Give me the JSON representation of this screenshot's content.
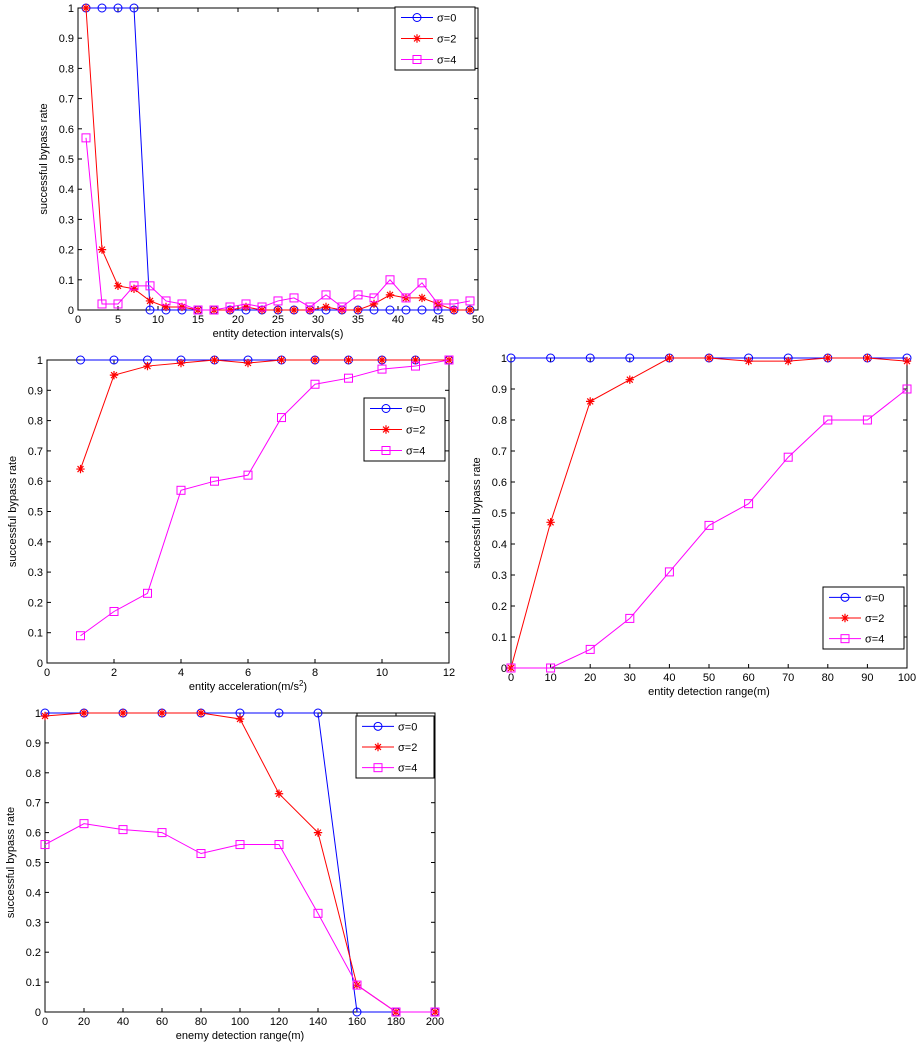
{
  "chart_data": [
    {
      "type": "line",
      "xlabel": "entity detection intervals(s)",
      "ylabel": "successful bypass rate",
      "xlim": [
        0,
        50
      ],
      "ylim": [
        0,
        1
      ],
      "xticks": [
        "0",
        "5",
        "10",
        "15",
        "20",
        "25",
        "30",
        "35",
        "40",
        "45",
        "50"
      ],
      "yticks": [
        "0",
        "0.1",
        "0.2",
        "0.3",
        "0.4",
        "0.5",
        "0.6",
        "0.7",
        "0.8",
        "0.9",
        "1"
      ],
      "legend_position": "top-right",
      "grid": false,
      "x": [
        1,
        3,
        5,
        7,
        9,
        11,
        13,
        15,
        17,
        19,
        21,
        23,
        25,
        27,
        29,
        31,
        33,
        35,
        37,
        39,
        41,
        43,
        45,
        47,
        49
      ],
      "series": [
        {
          "name": "σ=0",
          "color": "#0000ff",
          "marker": "circle",
          "values": [
            1,
            1,
            1,
            1,
            0,
            0,
            0,
            0,
            0,
            0,
            0,
            0,
            0,
            0,
            0,
            0,
            0,
            0,
            0,
            0,
            0,
            0,
            0,
            0,
            0
          ]
        },
        {
          "name": "σ=2",
          "color": "#ff0000",
          "marker": "star",
          "values": [
            1,
            0.2,
            0.08,
            0.07,
            0.03,
            0.01,
            0.01,
            0,
            0,
            0,
            0.01,
            0,
            0,
            0,
            0,
            0.01,
            0,
            0,
            0.02,
            0.05,
            0.04,
            0.04,
            0.02,
            0,
            0
          ]
        },
        {
          "name": "σ=4",
          "color": "#ff00ff",
          "marker": "square",
          "values": [
            0.57,
            0.02,
            0.02,
            0.08,
            0.08,
            0.03,
            0.02,
            0,
            0,
            0.01,
            0.02,
            0.01,
            0.03,
            0.04,
            0.01,
            0.05,
            0.01,
            0.05,
            0.04,
            0.1,
            0.04,
            0.09,
            0.02,
            0.02,
            0.03
          ]
        }
      ]
    },
    {
      "type": "line",
      "xlabel": "entity acceleration(m/s",
      "xlabel_sup": "2",
      "xlabel_end": ")",
      "ylabel": "successful bypass rate",
      "xlim": [
        0,
        12
      ],
      "ylim": [
        0,
        1
      ],
      "xticks": [
        "0",
        "2",
        "4",
        "6",
        "8",
        "10",
        "12"
      ],
      "yticks": [
        "0",
        "0.1",
        "0.2",
        "0.3",
        "0.4",
        "0.5",
        "0.6",
        "0.7",
        "0.8",
        "0.9",
        "1"
      ],
      "legend_position": "top-right",
      "grid": false,
      "x": [
        1,
        2,
        3,
        4,
        5,
        6,
        7,
        8,
        9,
        10,
        11,
        12
      ],
      "series": [
        {
          "name": "σ=0",
          "color": "#0000ff",
          "marker": "circle",
          "values": [
            1,
            1,
            1,
            1,
            1,
            1,
            1,
            1,
            1,
            1,
            1,
            1
          ]
        },
        {
          "name": "σ=2",
          "color": "#ff0000",
          "marker": "star",
          "values": [
            0.64,
            0.95,
            0.98,
            0.99,
            1,
            0.99,
            1,
            1,
            1,
            1,
            1,
            1
          ]
        },
        {
          "name": "σ=4",
          "color": "#ff00ff",
          "marker": "square",
          "values": [
            0.09,
            0.17,
            0.23,
            0.57,
            0.6,
            0.62,
            0.81,
            0.92,
            0.94,
            0.97,
            0.98,
            1
          ]
        }
      ]
    },
    {
      "type": "line",
      "xlabel": "entity detection range(m)",
      "ylabel": "successful bypass rate",
      "xlim": [
        0,
        100
      ],
      "ylim": [
        0,
        1
      ],
      "xticks": [
        "0",
        "10",
        "20",
        "30",
        "40",
        "50",
        "60",
        "70",
        "80",
        "90",
        "100"
      ],
      "yticks": [
        "0",
        "0.1",
        "0.2",
        "0.3",
        "0.4",
        "0.5",
        "0.6",
        "0.7",
        "0.8",
        "0.9",
        "1"
      ],
      "legend_position": "bottom-right",
      "grid": false,
      "x": [
        0,
        10,
        20,
        30,
        40,
        50,
        60,
        70,
        80,
        90,
        100
      ],
      "series": [
        {
          "name": "σ=0",
          "color": "#0000ff",
          "marker": "circle",
          "values": [
            1,
            1,
            1,
            1,
            1,
            1,
            1,
            1,
            1,
            1,
            1
          ]
        },
        {
          "name": "σ=2",
          "color": "#ff0000",
          "marker": "star",
          "values": [
            0,
            0.47,
            0.86,
            0.93,
            1,
            1,
            0.99,
            0.99,
            1,
            1,
            0.99
          ]
        },
        {
          "name": "σ=4",
          "color": "#ff00ff",
          "marker": "square",
          "values": [
            0,
            0,
            0.06,
            0.16,
            0.31,
            0.46,
            0.53,
            0.68,
            0.8,
            0.8,
            0.9
          ]
        }
      ]
    },
    {
      "type": "line",
      "xlabel": "enemy detection range(m)",
      "ylabel": "successful bypass rate",
      "xlim": [
        0,
        200
      ],
      "ylim": [
        0,
        1
      ],
      "xticks": [
        "0",
        "20",
        "40",
        "60",
        "80",
        "100",
        "120",
        "140",
        "160",
        "180",
        "200"
      ],
      "yticks": [
        "0",
        "0.1",
        "0.2",
        "0.3",
        "0.4",
        "0.5",
        "0.6",
        "0.7",
        "0.8",
        "0.9",
        "1"
      ],
      "legend_position": "top-right",
      "grid": false,
      "x": [
        0,
        20,
        40,
        60,
        80,
        100,
        120,
        140,
        160,
        180,
        200
      ],
      "series": [
        {
          "name": "σ=0",
          "color": "#0000ff",
          "marker": "circle",
          "values": [
            1,
            1,
            1,
            1,
            1,
            1,
            1,
            1,
            0,
            0,
            0
          ]
        },
        {
          "name": "σ=2",
          "color": "#ff0000",
          "marker": "star",
          "values": [
            0.99,
            1,
            1,
            1,
            1,
            0.98,
            0.73,
            0.6,
            0.09,
            0,
            0
          ]
        },
        {
          "name": "σ=4",
          "color": "#ff00ff",
          "marker": "square",
          "values": [
            0.56,
            0.63,
            0.61,
            0.6,
            0.53,
            0.56,
            0.56,
            0.33,
            0.09,
            0,
            0
          ]
        }
      ]
    }
  ]
}
